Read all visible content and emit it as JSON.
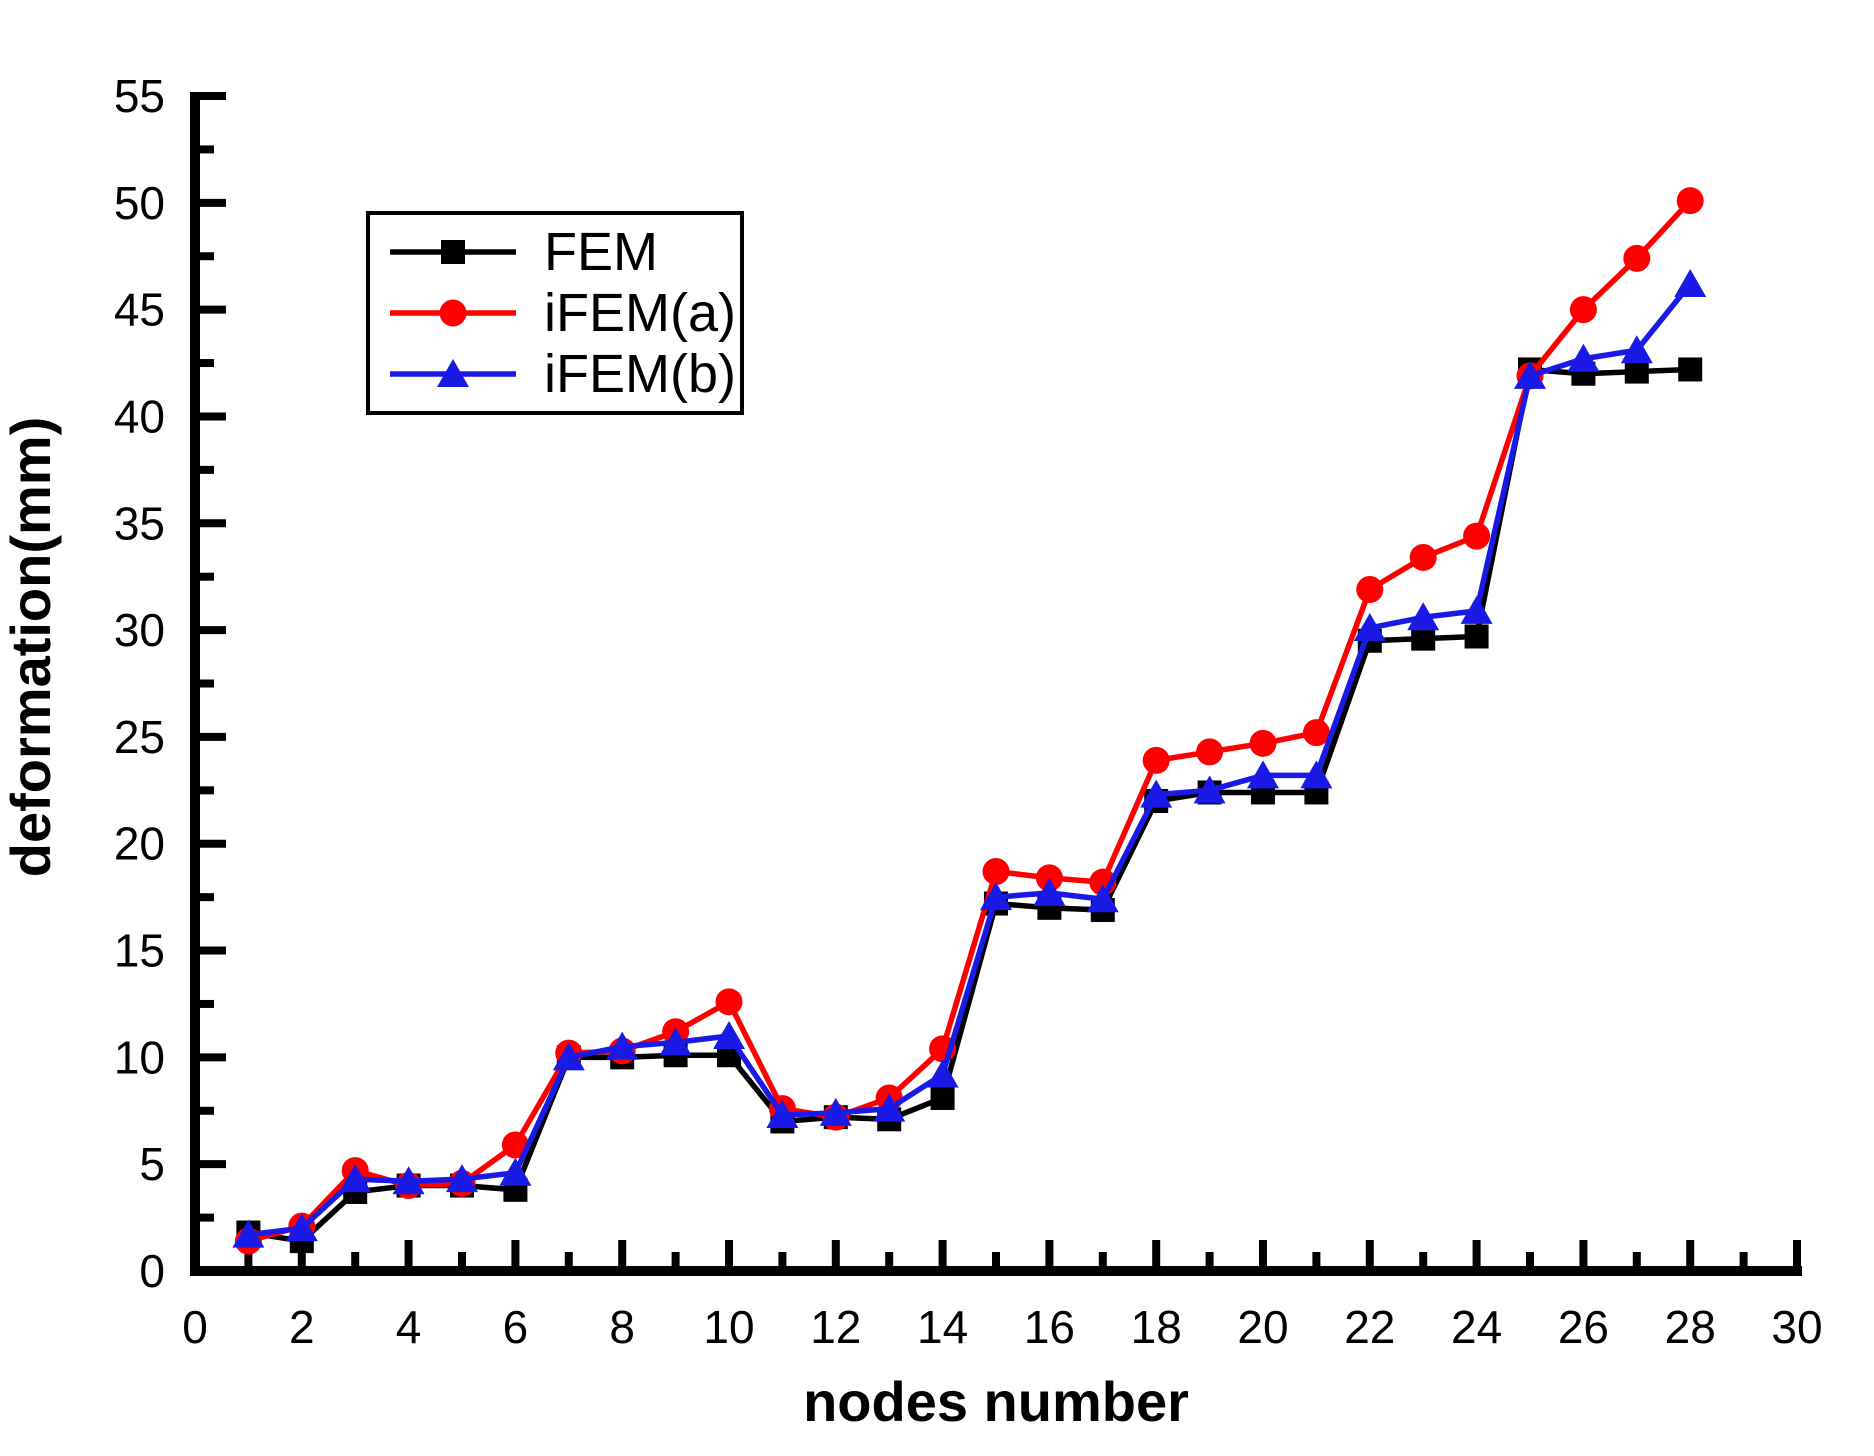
{
  "figure": {
    "background": "#ffffff",
    "axis_color": "#000000"
  },
  "legend": {
    "position": "upper-left-inside",
    "items": [
      {
        "label": "FEM"
      },
      {
        "label": "iFEM(a)"
      },
      {
        "label": "iFEM(b)"
      }
    ]
  },
  "chart_data": {
    "type": "line",
    "title": "",
    "xlabel": "nodes number",
    "ylabel": "deformation(mm)",
    "xlim": [
      0,
      30
    ],
    "ylim": [
      0,
      55
    ],
    "x_tick_labels": [
      0,
      2,
      4,
      6,
      8,
      10,
      12,
      14,
      16,
      18,
      20,
      22,
      24,
      26,
      28,
      30
    ],
    "y_tick_labels": [
      0,
      5,
      10,
      15,
      20,
      25,
      30,
      35,
      40,
      45,
      50,
      55
    ],
    "x_minor_step": 1,
    "y_minor_step": 2.5,
    "grid": false,
    "legend_position": "upper-left-inside",
    "x": [
      1,
      2,
      3,
      4,
      5,
      6,
      7,
      8,
      9,
      10,
      11,
      12,
      13,
      14,
      15,
      16,
      17,
      18,
      19,
      20,
      21,
      22,
      23,
      24,
      25,
      26,
      27,
      28
    ],
    "series": [
      {
        "name": "FEM",
        "color": "#000000",
        "marker": "square",
        "values": [
          1.8,
          1.4,
          3.7,
          4.0,
          4.0,
          3.8,
          10.0,
          10.0,
          10.1,
          10.1,
          7.0,
          7.2,
          7.1,
          8.1,
          17.2,
          17.0,
          16.9,
          22.0,
          22.4,
          22.4,
          22.4,
          29.5,
          29.6,
          29.7,
          42.2,
          42.0,
          42.1,
          42.2
        ]
      },
      {
        "name": "iFEM(a)",
        "color": "#FF0000",
        "marker": "circle",
        "values": [
          1.4,
          2.1,
          4.7,
          4.0,
          4.1,
          5.9,
          10.2,
          10.3,
          11.2,
          12.6,
          7.6,
          7.2,
          8.1,
          10.4,
          18.7,
          18.4,
          18.2,
          23.9,
          24.3,
          24.7,
          25.2,
          31.9,
          33.4,
          34.4,
          41.9,
          45.0,
          47.4,
          50.1
        ]
      },
      {
        "name": "iFEM(b)",
        "color": "#1A1AE6",
        "marker": "triangle",
        "values": [
          1.7,
          2.0,
          4.3,
          4.2,
          4.3,
          4.6,
          10.0,
          10.5,
          10.7,
          11.0,
          7.3,
          7.4,
          7.6,
          9.2,
          17.5,
          17.7,
          17.4,
          22.3,
          22.5,
          23.2,
          23.2,
          30.1,
          30.6,
          30.9,
          41.9,
          42.7,
          43.1,
          46.2
        ]
      }
    ]
  }
}
